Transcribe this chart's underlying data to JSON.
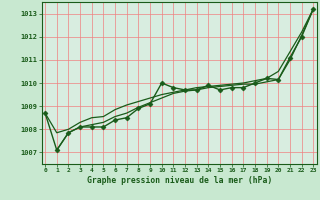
{
  "title": "Graphe pression niveau de la mer (hPa)",
  "bg_color": "#c8e8d0",
  "plot_bg_color": "#d8ede0",
  "grid_color": "#f08080",
  "line_color": "#1a5c1a",
  "xlim": [
    -0.3,
    23.3
  ],
  "ylim": [
    1006.5,
    1013.5
  ],
  "yticks": [
    1007,
    1008,
    1009,
    1010,
    1011,
    1012,
    1013
  ],
  "xticks": [
    0,
    1,
    2,
    3,
    4,
    5,
    6,
    7,
    8,
    9,
    10,
    11,
    12,
    13,
    14,
    15,
    16,
    17,
    18,
    19,
    20,
    21,
    22,
    23
  ],
  "series": [
    {
      "x": [
        0,
        1,
        2,
        3,
        4,
        5,
        6,
        7,
        8,
        9,
        10,
        11,
        12,
        13,
        14,
        15,
        16,
        17,
        18,
        19,
        20,
        21,
        22,
        23
      ],
      "y": [
        1008.7,
        1007.1,
        1007.85,
        1008.1,
        1008.1,
        1008.1,
        1008.4,
        1008.5,
        1008.9,
        1009.1,
        1010.0,
        1009.8,
        1009.7,
        1009.7,
        1009.9,
        1009.7,
        1009.8,
        1009.8,
        1010.0,
        1010.2,
        1010.15,
        1011.1,
        1012.0,
        1013.2
      ],
      "marker": "D",
      "markersize": 2.5,
      "linewidth": 1.0
    },
    {
      "x": [
        1,
        2,
        3,
        4,
        5,
        6,
        7,
        8,
        9,
        10,
        11,
        12,
        13,
        14,
        15,
        16,
        17,
        18,
        19,
        20,
        21,
        22,
        23
      ],
      "y": [
        1007.1,
        1007.85,
        1008.1,
        1008.2,
        1008.3,
        1008.55,
        1008.7,
        1008.95,
        1009.15,
        1009.35,
        1009.55,
        1009.65,
        1009.7,
        1009.8,
        1009.85,
        1009.9,
        1009.95,
        1009.95,
        1010.05,
        1010.15,
        1011.0,
        1012.05,
        1013.2
      ],
      "marker": null,
      "linewidth": 0.9
    },
    {
      "x": [
        0,
        1,
        2,
        3,
        4,
        5,
        6,
        7,
        8,
        9,
        10,
        11,
        12,
        13,
        14,
        15,
        16,
        17,
        18,
        19,
        20,
        21,
        22,
        23
      ],
      "y": [
        1008.7,
        1007.85,
        1008.0,
        1008.3,
        1008.5,
        1008.55,
        1008.85,
        1009.05,
        1009.2,
        1009.35,
        1009.5,
        1009.6,
        1009.7,
        1009.8,
        1009.85,
        1009.9,
        1009.95,
        1010.0,
        1010.1,
        1010.2,
        1010.5,
        1011.35,
        1012.2,
        1013.2
      ],
      "marker": null,
      "linewidth": 0.9
    }
  ]
}
